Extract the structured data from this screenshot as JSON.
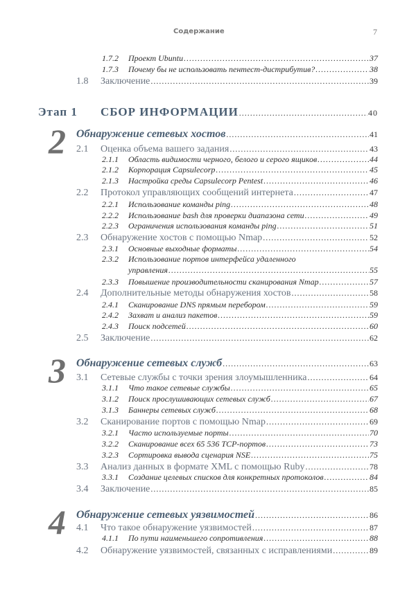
{
  "header": {
    "title": "Содержание",
    "page": "7"
  },
  "entries": [
    {
      "level": "sub",
      "num": "1.7.2",
      "title": "Проект Ubuntu",
      "page": "37"
    },
    {
      "level": "sub",
      "num": "1.7.3",
      "title": "Почему бы не использовать пентест-дистрибутив?",
      "page": "38"
    },
    {
      "level": "sec",
      "num": "1.8",
      "title": "Заключение",
      "page": "39"
    },
    {
      "level": "part",
      "num": "Этап 1",
      "title": "СБОР ИНФОРМАЦИИ",
      "page": "40"
    },
    {
      "level": "chap",
      "num": "2",
      "title": "Обнаружение сетевых хостов",
      "page": "41"
    },
    {
      "level": "sec",
      "num": "2.1",
      "title": "Оценка объема вашего задания",
      "page": "43"
    },
    {
      "level": "sub",
      "num": "2.1.1",
      "title": "Область видимости черного, белого и серого ящиков",
      "page": "44"
    },
    {
      "level": "sub",
      "num": "2.1.2",
      "title": "Корпорация Capsulecorp",
      "page": "45"
    },
    {
      "level": "sub",
      "num": "2.1.3",
      "title": "Настройка среды Capsulecorp Pentest",
      "page": "46"
    },
    {
      "level": "sec",
      "num": "2.2",
      "title": "Протокол управляющих сообщений интернета",
      "page": "47"
    },
    {
      "level": "sub",
      "num": "2.2.1",
      "title": "Использование команды ping",
      "page": "48"
    },
    {
      "level": "sub",
      "num": "2.2.2",
      "title": "Использование bash для проверки диапазона сети",
      "page": "49"
    },
    {
      "level": "sub",
      "num": "2.2.3",
      "title": "Ограничения использования команды ping",
      "page": "51"
    },
    {
      "level": "sec",
      "num": "2.3",
      "title": "Обнаружение хостов с помощью Nmap",
      "page": "52"
    },
    {
      "level": "sub",
      "num": "2.3.1",
      "title": "Основные выходные форматы",
      "page": "54"
    },
    {
      "level": "sub2",
      "num": "2.3.2",
      "title": "Использование портов интерфейса удаленного",
      "title2": "управления",
      "page": "55"
    },
    {
      "level": "sub",
      "num": "2.3.3",
      "title": "Повышение производительности сканирования Nmap",
      "page": "57"
    },
    {
      "level": "sec",
      "num": "2.4",
      "title": "Дополнительные методы обнаружения хостов",
      "page": "58"
    },
    {
      "level": "sub",
      "num": "2.4.1",
      "title": "Сканирование DNS прямым перебором",
      "page": "59"
    },
    {
      "level": "sub",
      "num": "2.4.2",
      "title": "Захват и анализ пакетов",
      "page": "59"
    },
    {
      "level": "sub",
      "num": "2.4.3",
      "title": "Поиск подсетей",
      "page": "60"
    },
    {
      "level": "sec",
      "num": "2.5",
      "title": "Заключение",
      "page": "62"
    },
    {
      "level": "chap",
      "num": "3",
      "title": "Обнаружение сетевых служб",
      "page": "63"
    },
    {
      "level": "sec",
      "num": "3.1",
      "title": "Сетевые службы с точки зрения злоумышленника",
      "page": "64"
    },
    {
      "level": "sub",
      "num": "3.1.1",
      "title": "Что такое сетевые службы",
      "page": "65"
    },
    {
      "level": "sub",
      "num": "3.1.2",
      "title": "Поиск прослушивающих сетевых служб",
      "page": "67"
    },
    {
      "level": "sub",
      "num": "3.1.3",
      "title": "Баннеры сетевых служб",
      "page": "68"
    },
    {
      "level": "sec",
      "num": "3.2",
      "title": "Сканирование портов с помощью Nmap",
      "page": "69"
    },
    {
      "level": "sub",
      "num": "3.2.1",
      "title": "Часто используемые порты",
      "page": "70"
    },
    {
      "level": "sub",
      "num": "3.2.2",
      "title": "Сканирование всех 65 536 TCP-портов",
      "page": "73"
    },
    {
      "level": "sub",
      "num": "3.2.3",
      "title": "Сортировка вывода сценария NSE",
      "page": "75"
    },
    {
      "level": "sec",
      "num": "3.3",
      "title": "Анализ данных в формате XML с помощью Ruby",
      "page": "78"
    },
    {
      "level": "sub",
      "num": "3.3.1",
      "title": "Создание целевых списков для конкретных протоколов",
      "page": "84"
    },
    {
      "level": "sec",
      "num": "3.4",
      "title": "Заключение",
      "page": "85"
    },
    {
      "level": "chap",
      "num": "4",
      "title": "Обнаружение сетевых уязвимостей",
      "page": "86"
    },
    {
      "level": "sec",
      "num": "4.1",
      "title": "Что такое обнаружение уязвимостей",
      "page": "87"
    },
    {
      "level": "sub",
      "num": "4.1.1",
      "title": "По пути наименьшего сопротивления",
      "page": "88"
    },
    {
      "level": "sec",
      "num": "4.2",
      "title": "Обнаружение уязвимостей, связанных с исправлениями",
      "page": "89"
    }
  ]
}
